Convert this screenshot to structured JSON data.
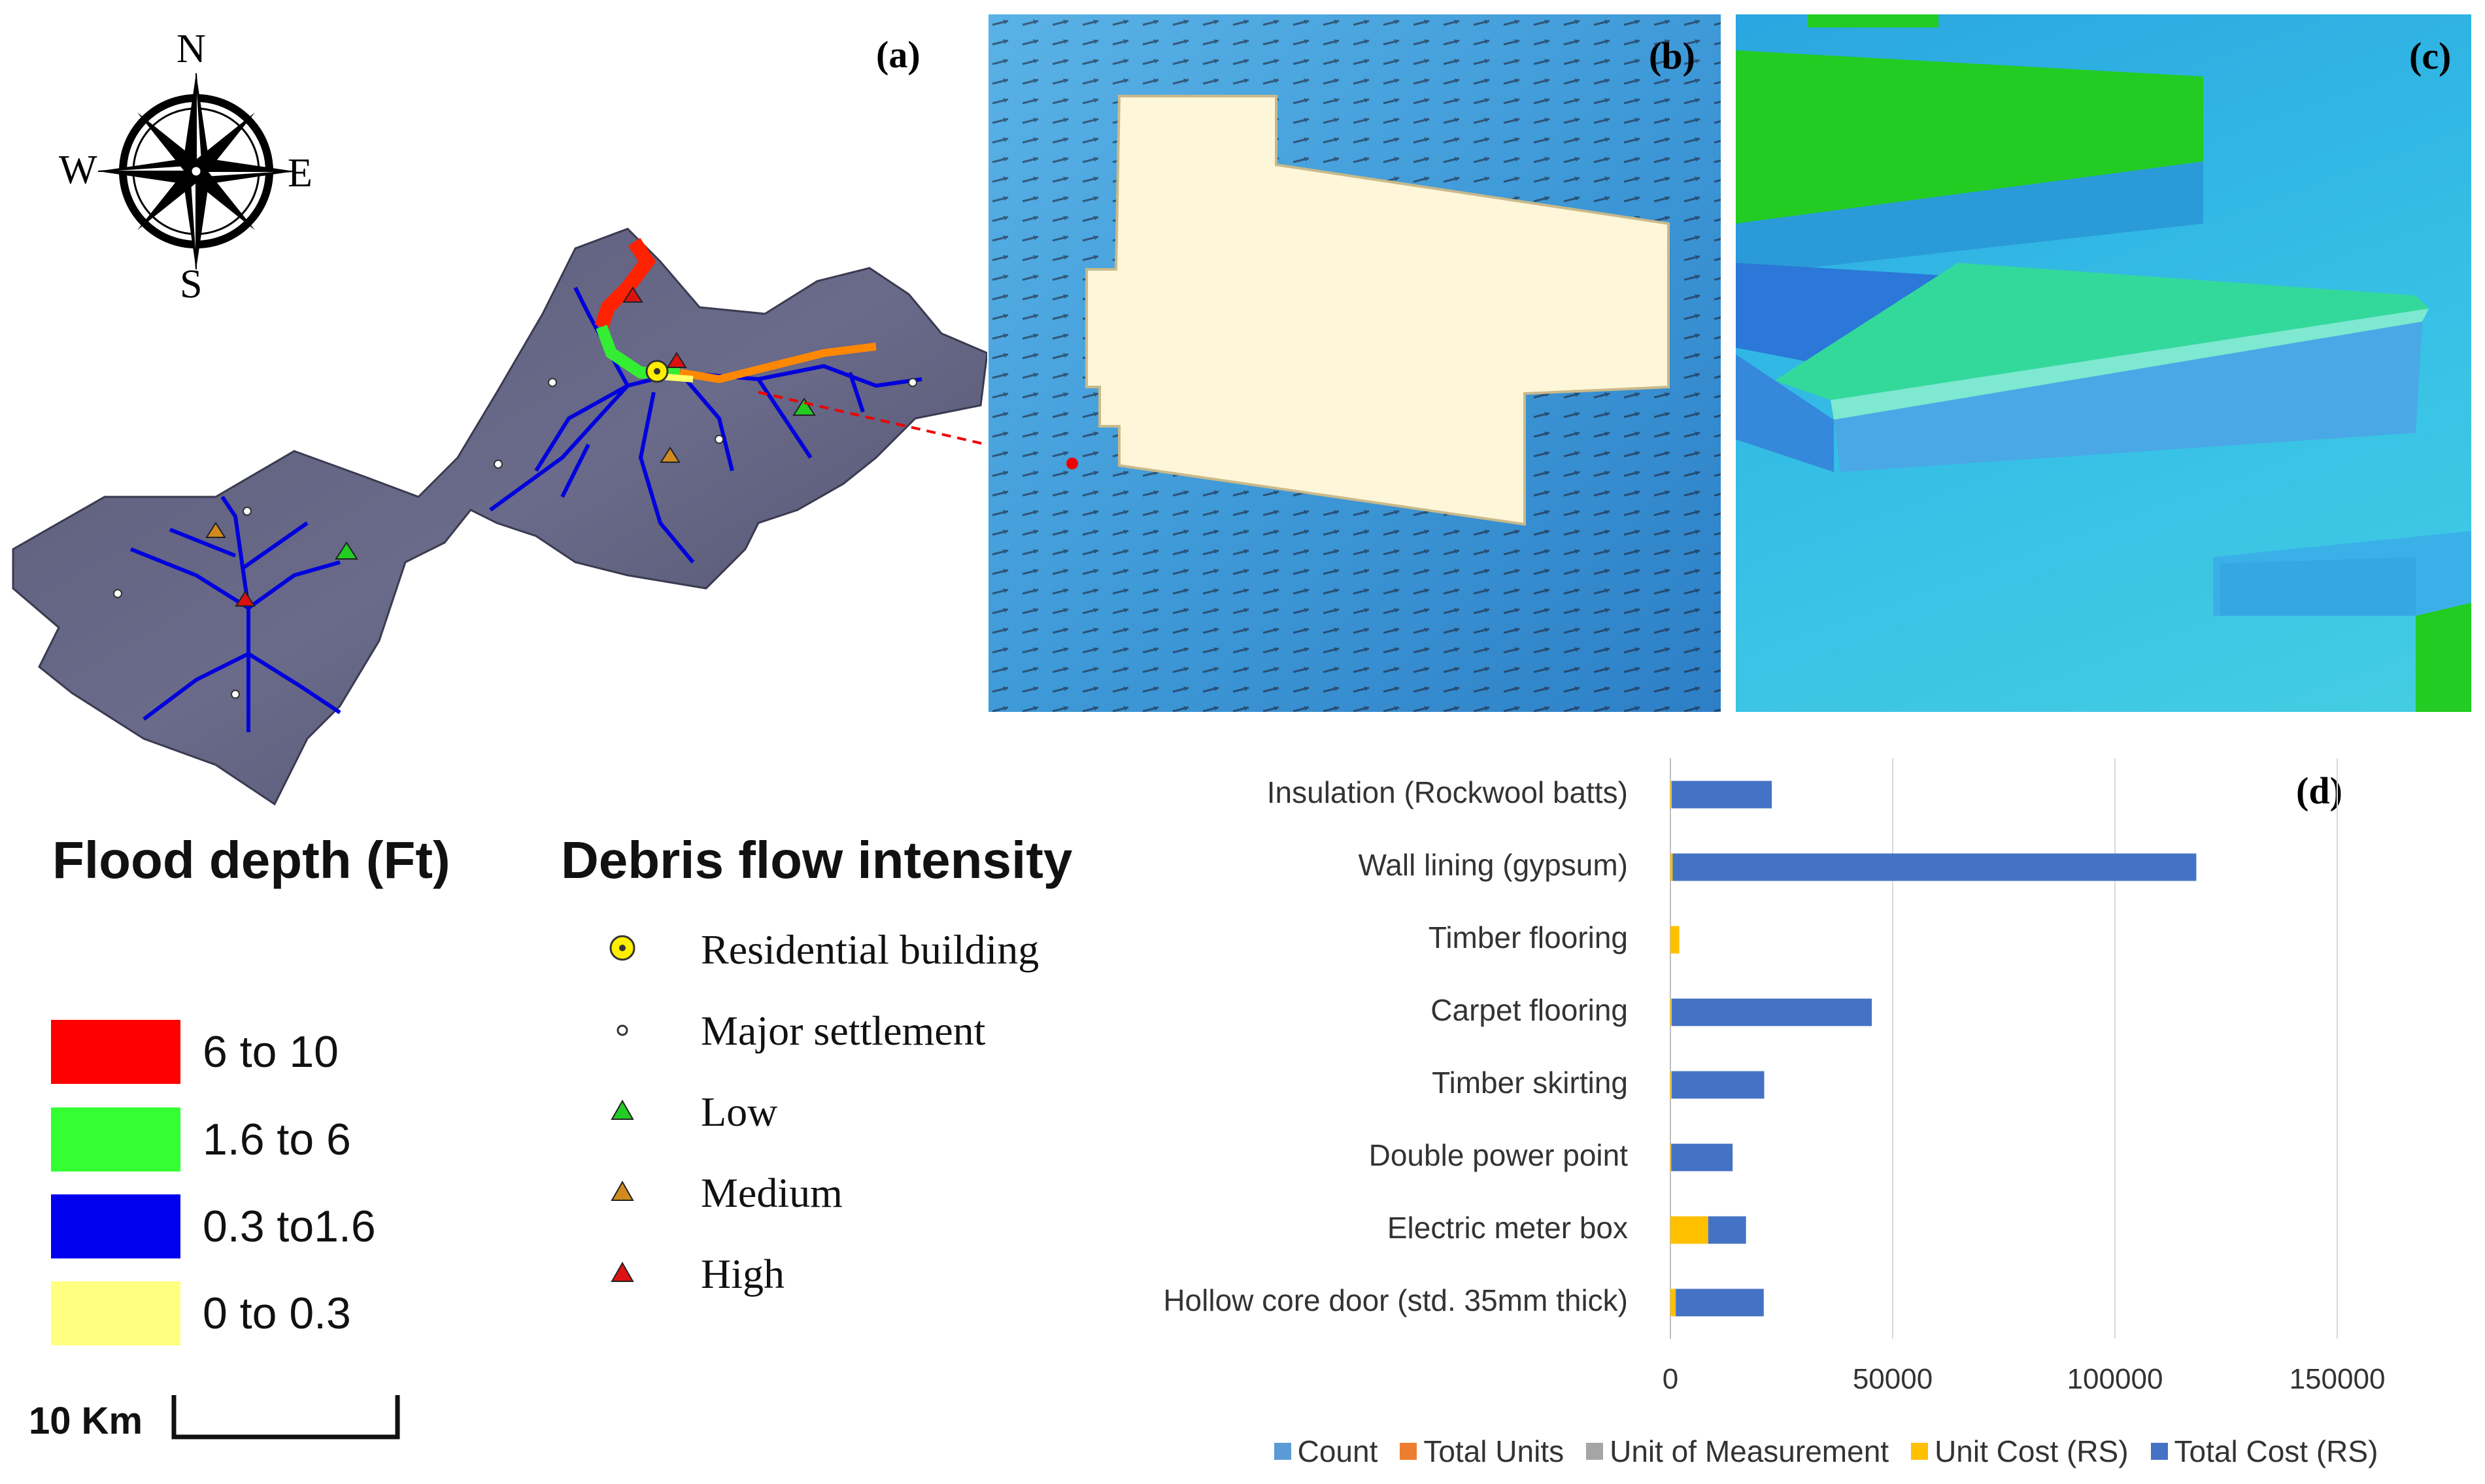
{
  "panels": {
    "a": "(a)",
    "b": "(b)",
    "c": "(c)",
    "d": "(d)"
  },
  "compass": {
    "n": "N",
    "s": "S",
    "e": "E",
    "w": "W"
  },
  "flood_legend": {
    "title": "Flood depth (Ft)",
    "items": [
      {
        "label": "6 to 10",
        "color": "#ff0000"
      },
      {
        "label": "1.6 to 6",
        "color": "#33ff33"
      },
      {
        "label": "0.3 to1.6",
        "color": "#0000ee"
      },
      {
        "label": "0 to 0.3",
        "color": "#ffff80"
      }
    ]
  },
  "debris_legend": {
    "title": "Debris flow intensity",
    "items": [
      {
        "label": "Residential building",
        "icon": "residential-building-icon",
        "color": "#ffee00"
      },
      {
        "label": "Major settlement",
        "icon": "settlement-dot-icon",
        "color": "#ffffff"
      },
      {
        "label": "Low",
        "icon": "triangle-icon",
        "color": "#22cc22"
      },
      {
        "label": "Medium",
        "icon": "triangle-icon",
        "color": "#d08a20"
      },
      {
        "label": "High",
        "icon": "triangle-icon",
        "color": "#dd1111"
      }
    ]
  },
  "scale_bar": {
    "label": "10 Km"
  },
  "chart_data": {
    "type": "bar",
    "orientation": "horizontal",
    "stacked": true,
    "categories": [
      "Insulation (Rockwool batts)",
      "Wall lining (gypsum)",
      "Timber flooring",
      "Carpet flooring",
      "Timber skirting",
      "Double power point",
      "Electric meter box",
      "Hollow core door (std. 35mm thick)"
    ],
    "series": [
      {
        "name": "Count",
        "color": "#5b9bd5",
        "values": [
          0,
          0,
          0,
          0,
          0,
          0,
          0,
          0
        ]
      },
      {
        "name": "Total Units",
        "color": "#ed7d31",
        "values": [
          0,
          0,
          0,
          0,
          0,
          0,
          0,
          0
        ]
      },
      {
        "name": "Unit of Measurement",
        "color": "#a5a5a5",
        "values": [
          0,
          0,
          0,
          0,
          0,
          0,
          0,
          0
        ]
      },
      {
        "name": "Unit Cost (RS)",
        "color": "#ffc000",
        "values": [
          300,
          500,
          2000,
          300,
          300,
          200,
          8500,
          1200
        ]
      },
      {
        "name": "Total Cost (RS)",
        "color": "#4472c4",
        "values": [
          22500,
          117800,
          0,
          45000,
          20800,
          13800,
          8500,
          19800
        ]
      }
    ],
    "xlim": [
      0,
      150000
    ],
    "xticks": [
      "0",
      "50000",
      "100000",
      "150000"
    ],
    "grid": true,
    "legend": "bottom"
  }
}
